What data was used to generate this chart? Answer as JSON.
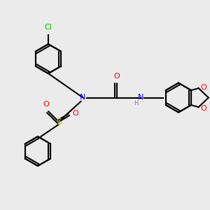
{
  "background_color": "#ebebeb",
  "bond_color": "#000000",
  "colors": {
    "N": "#0000ff",
    "O": "#ff0000",
    "S": "#cccc00",
    "Cl": "#00bb00",
    "C": "#000000",
    "H": "#808080"
  },
  "font_size": 7,
  "lw": 1.5
}
